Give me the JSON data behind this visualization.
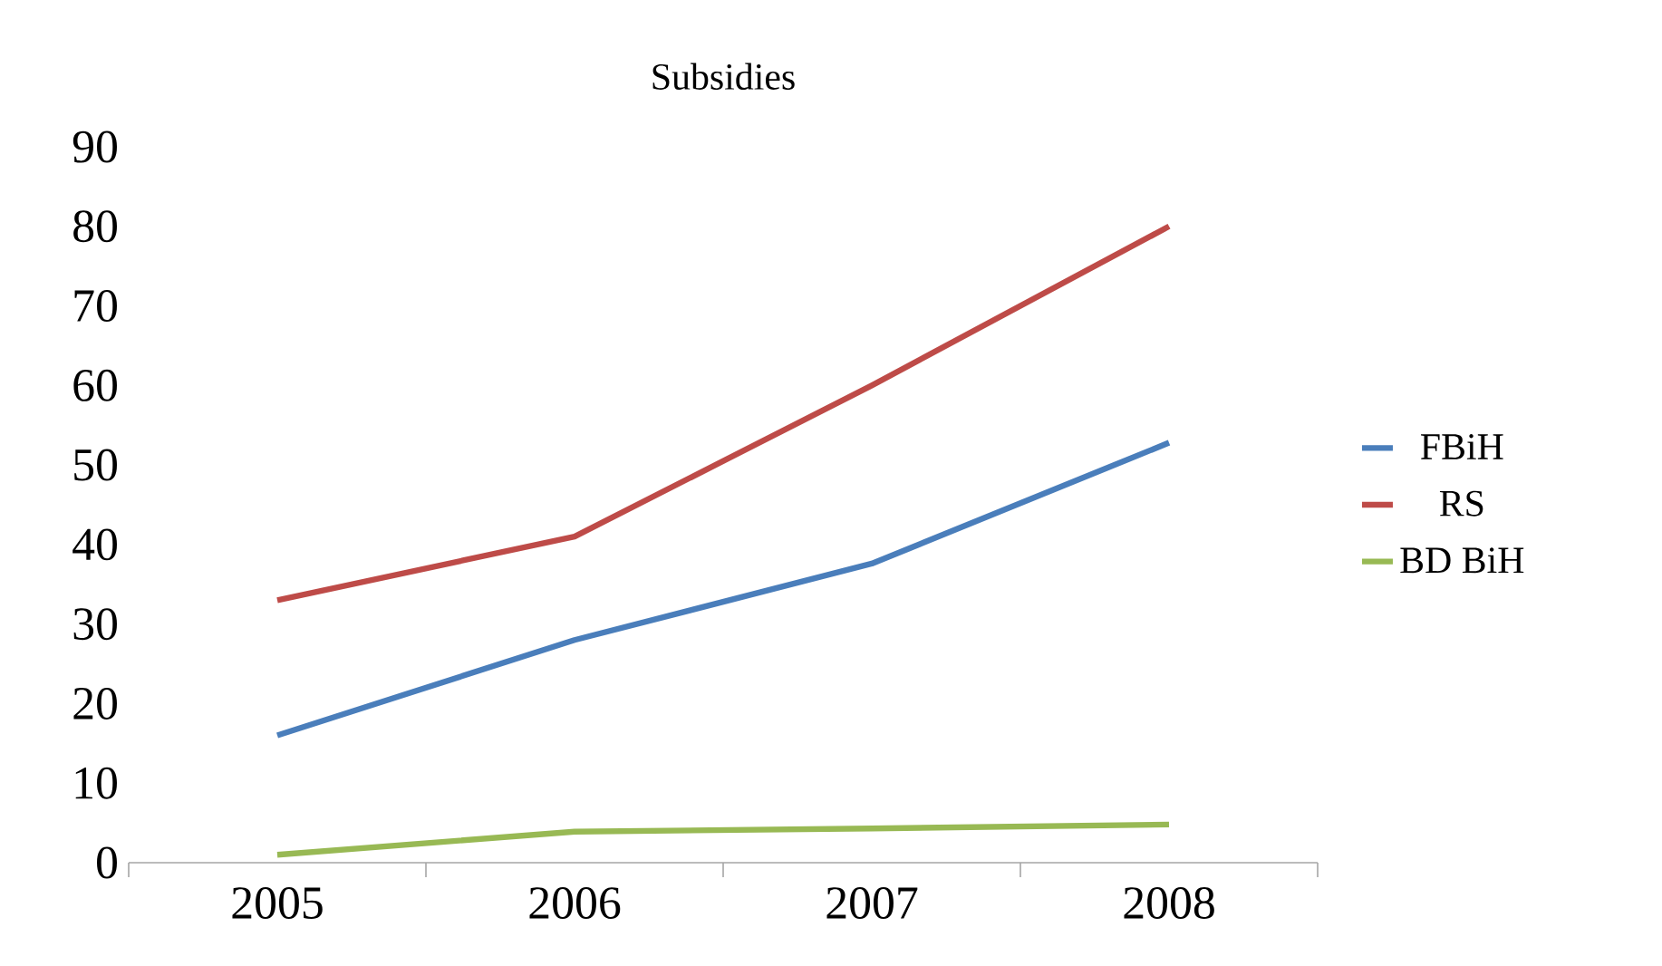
{
  "chart_data": {
    "type": "line",
    "title": "Subsidies",
    "categories": [
      "2005",
      "2006",
      "2007",
      "2008"
    ],
    "series": [
      {
        "name": "FBiH",
        "color": "#4a7ebb",
        "values": [
          16,
          28,
          37.6,
          52.8
        ]
      },
      {
        "name": "RS",
        "color": "#be4b48",
        "values": [
          33,
          41,
          60,
          80
        ]
      },
      {
        "name": "BD BiH",
        "color": "#98b954",
        "values": [
          1,
          3.9,
          4.3,
          4.8
        ]
      }
    ],
    "ylim": [
      0,
      90
    ],
    "yticks": [
      0,
      10,
      20,
      30,
      40,
      50,
      60,
      70,
      80,
      90
    ],
    "legend": "right",
    "marker": "none",
    "line_style": "solid",
    "grid": false
  }
}
